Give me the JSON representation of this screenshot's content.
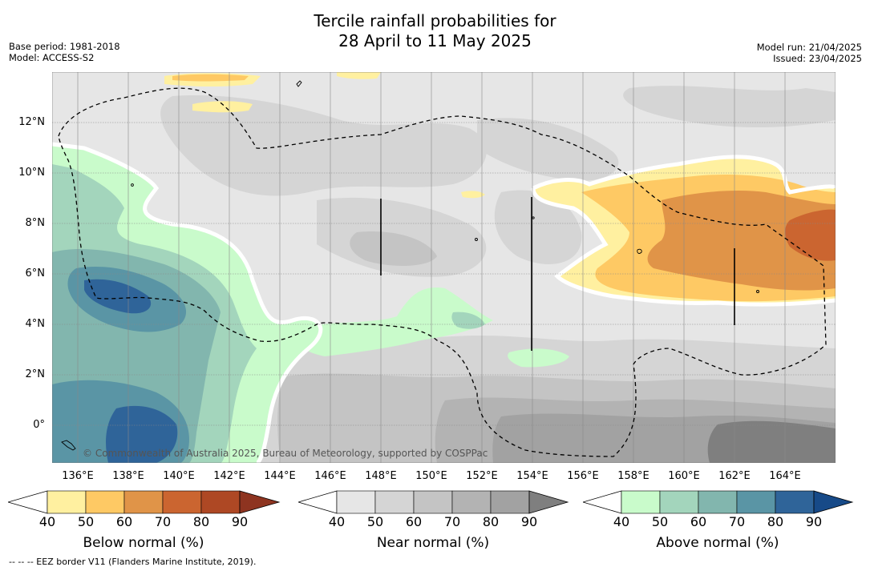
{
  "title": {
    "line1": "Tercile rainfall probabilities for",
    "line2": "28 April to 11 May 2025"
  },
  "meta_left": {
    "base_period": "Base period: 1981-2018",
    "model": "Model: ACCESS-S2"
  },
  "meta_right": {
    "model_run": "Model run: 21/04/2025",
    "issued": "Issued: 23/04/2025"
  },
  "axes": {
    "lat_labels": [
      "12°N",
      "10°N",
      "8°N",
      "6°N",
      "4°N",
      "2°N",
      "0°"
    ],
    "lon_labels": [
      "136°E",
      "138°E",
      "140°E",
      "142°E",
      "144°E",
      "146°E",
      "148°E",
      "150°E",
      "152°E",
      "154°E",
      "156°E",
      "158°E",
      "160°E",
      "162°E",
      "164°E"
    ]
  },
  "map_extent": {
    "lon": [
      135,
      166
    ],
    "lat": [
      -1.5,
      14
    ]
  },
  "copyright": "© Commonwealth of Australia 2025, Bureau of Meteorology, supported by COSPPac",
  "colorbars": [
    {
      "label": "Below normal (%)",
      "ticks": [
        "40",
        "50",
        "60",
        "70",
        "80",
        "90"
      ],
      "colors": [
        "#ffffff",
        "#fff0a0",
        "#fec964",
        "#e09448",
        "#cb6530",
        "#ae4824",
        "#8e3420"
      ]
    },
    {
      "label": "Near normal (%)",
      "ticks": [
        "40",
        "50",
        "60",
        "70",
        "80",
        "90"
      ],
      "colors": [
        "#ffffff",
        "#e6e6e6",
        "#d5d5d5",
        "#c4c4c4",
        "#b3b3b3",
        "#a2a2a2",
        "#7f7f7f"
      ]
    },
    {
      "label": "Above normal (%)",
      "ticks": [
        "40",
        "50",
        "60",
        "70",
        "80",
        "90"
      ],
      "colors": [
        "#ffffff",
        "#c9fbcb",
        "#a3d5bc",
        "#82b6ae",
        "#5a95a5",
        "#2f6499",
        "#174a88"
      ]
    }
  ],
  "footnote": "--  --  -- EEZ border V11 (Flanders Marine Institute, 2019)."
}
